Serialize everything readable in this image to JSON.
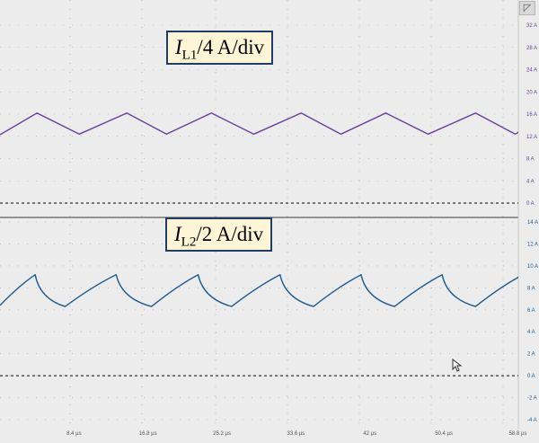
{
  "chart_data": [
    {
      "type": "line",
      "title": "",
      "label_symbol": "I",
      "label_sub": "L1",
      "label_rest": "/4 A/div",
      "ylabel": "",
      "xlabel": "",
      "y_ticks": [
        "32 A",
        "28 A",
        "24 A",
        "20 A",
        "16 A",
        "12 A",
        "8 A",
        "4 A",
        "0 A"
      ],
      "ylim": [
        0,
        32
      ],
      "xlim": [
        0,
        61.2
      ],
      "color": "#6a3f9a",
      "series": [
        {
          "x": [
            0,
            4.2,
            9.0,
            14.4,
            18.9,
            24.0,
            28.8,
            34.2,
            38.7,
            43.8,
            48.6,
            54.0,
            58.5,
            61.2
          ],
          "values": [
            12.3,
            16.2,
            12.4,
            16.2,
            12.4,
            16.2,
            12.4,
            16.2,
            12.4,
            16.2,
            12.4,
            16.2,
            12.4,
            15.0
          ]
        }
      ],
      "zero_line": true
    },
    {
      "type": "line",
      "title": "",
      "label_symbol": "I",
      "label_sub": "L2",
      "label_rest": "/2 A/div",
      "ylabel": "",
      "xlabel": "",
      "y_ticks": [
        "14 A",
        "12 A",
        "10 A",
        "8 A",
        "6 A",
        "4 A",
        "2 A",
        "0 A",
        "-2 A",
        "-4 A"
      ],
      "ylim": [
        -4,
        14
      ],
      "xlim": [
        0,
        61.2
      ],
      "color": "#1f5a8f",
      "x_ticks": [
        "8.4 µs",
        "16.8 µs",
        "25.2 µs",
        "33.6 µs",
        "42 µs",
        "50.4 µs",
        "58.8 µs"
      ],
      "x_tick_values": [
        8.4,
        16.8,
        25.2,
        33.6,
        42,
        50.4,
        58.8
      ],
      "series": [
        {
          "x": [
            0,
            4.0,
            7.4,
            13.2,
            17.2,
            22.5,
            26.3,
            31.8,
            35.6,
            41.0,
            44.8,
            50.2,
            54.0,
            59.4,
            61.2
          ],
          "values": [
            6.4,
            9.2,
            6.3,
            9.2,
            6.3,
            9.2,
            6.3,
            9.2,
            6.3,
            9.2,
            6.3,
            9.2,
            6.3,
            9.2,
            7.0
          ],
          "shape": [
            "start",
            "conc",
            "convex",
            "conc",
            "convex",
            "conc",
            "convex",
            "conc",
            "convex",
            "conc",
            "convex",
            "conc",
            "convex",
            "conc",
            "convex"
          ]
        }
      ],
      "zero_line": true
    }
  ],
  "corner_icon": "expand-corner-icon",
  "cursor_icon": "mouse-pointer-icon"
}
